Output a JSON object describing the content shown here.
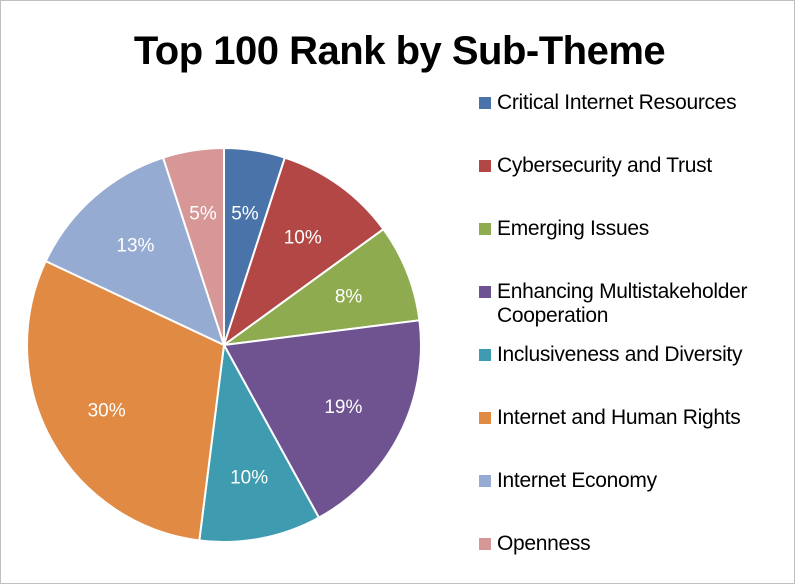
{
  "chart_data": {
    "type": "pie",
    "title": "Top 100 Rank by Sub-Theme",
    "legend_position": "right",
    "categories": [
      "Critical Internet Resources",
      "Cybersecurity and Trust",
      "Emerging Issues",
      "Enhancing Multistakeholder Cooperation",
      "Inclusiveness and Diversity",
      "Internet and Human Rights",
      "Internet Economy",
      "Openness"
    ],
    "values": [
      5,
      10,
      8,
      19,
      10,
      30,
      13,
      5
    ],
    "labels": [
      "5%",
      "10%",
      "8%",
      "19%",
      "10%",
      "30%",
      "13%",
      "5%"
    ],
    "colors": [
      "#4a73aa",
      "#b24745",
      "#8eac4f",
      "#6f5391",
      "#3e9bb0",
      "#e08a43",
      "#96abd2",
      "#d79797"
    ]
  }
}
